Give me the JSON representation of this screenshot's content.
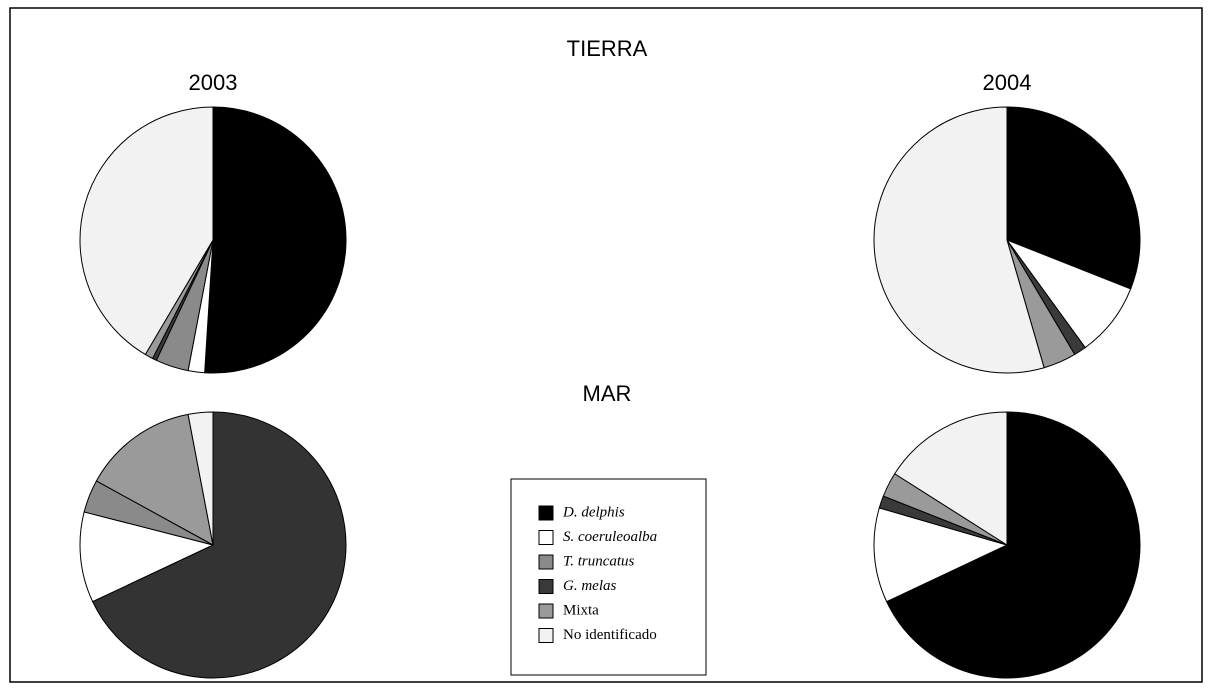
{
  "headings": [
    "TIERRA",
    "MAR"
  ],
  "chart_data": [
    {
      "type": "pie",
      "title": "2003",
      "categories": [
        "D. delphis",
        "S. coeruleoalba",
        "T. truncatus",
        "G. melas",
        "Mixta",
        "No identificado"
      ],
      "values": [
        51,
        2,
        4,
        0.5,
        1,
        41.5
      ],
      "colors": [
        "#000000",
        "#ffffff",
        "#8a8a8a",
        "#3a3a3a",
        "#9a9a9a",
        "#f2f2f2"
      ]
    },
    {
      "type": "pie",
      "title": "2004",
      "categories": [
        "D. delphis",
        "S. coeruleoalba",
        "T. truncatus",
        "G. melas",
        "Mixta",
        "No identificado"
      ],
      "values": [
        31,
        9,
        0,
        1.5,
        4,
        54.5
      ],
      "colors": [
        "#000000",
        "#ffffff",
        "#8a8a8a",
        "#3a3a3a",
        "#9a9a9a",
        "#f2f2f2"
      ]
    },
    {
      "type": "pie",
      "categories": [
        "D. delphis",
        "S. coeruleoalba",
        "T. truncatus",
        "G. melas",
        "Mixta",
        "No identificado"
      ],
      "values": [
        68,
        11,
        4,
        0,
        14,
        3
      ],
      "colors": [
        "#333333",
        "#ffffff",
        "#8a8a8a",
        "#3a3a3a",
        "#9a9a9a",
        "#f2f2f2"
      ]
    },
    {
      "type": "pie",
      "categories": [
        "D. delphis",
        "S. coeruleoalba",
        "T. truncatus",
        "G. melas",
        "Mixta",
        "No identificado"
      ],
      "values": [
        68,
        11.5,
        0,
        1.5,
        3,
        16
      ],
      "colors": [
        "#000000",
        "#ffffff",
        "#8a8a8a",
        "#3a3a3a",
        "#9a9a9a",
        "#f2f2f2"
      ]
    }
  ]
}
